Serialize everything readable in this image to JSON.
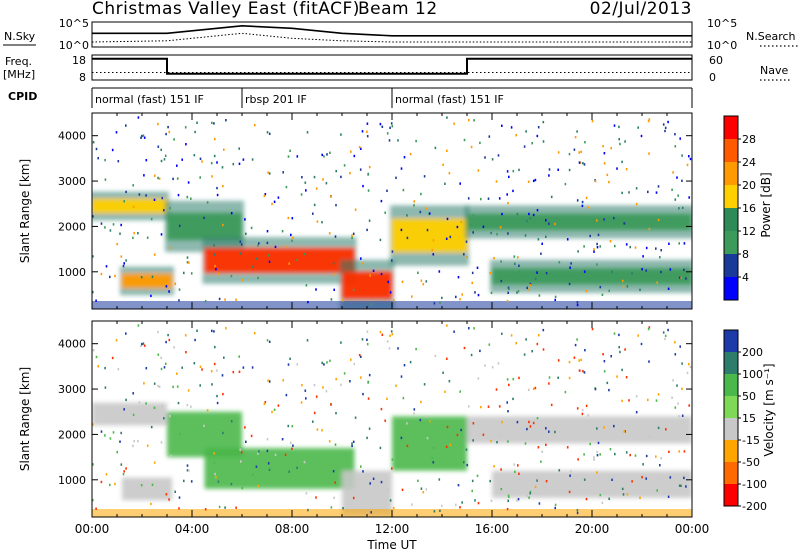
{
  "header": {
    "title": "Christmas Valley East (fitACF)",
    "beam": "Beam 12",
    "date": "02/Jul/2013"
  },
  "strip_sky": {
    "left_label": "N.Sky",
    "right_label": "N.Search",
    "left_ticks": [
      "10^5",
      "10^0"
    ],
    "right_ticks": [
      "10^5",
      "10^0"
    ]
  },
  "strip_freq": {
    "left_label_1": "Freq.",
    "left_label_2": "[MHz]",
    "right_label": "Nave",
    "left_ticks": [
      "18",
      "8"
    ],
    "right_ticks": [
      "60",
      "0"
    ]
  },
  "cpid": {
    "label": "CPID",
    "segments": [
      {
        "name": "normal (fast) 151 IF",
        "start_h": 0,
        "end_h": 6
      },
      {
        "name": "rbsp 201 IF",
        "start_h": 6,
        "end_h": 12
      },
      {
        "name": "normal (fast) 151 IF",
        "start_h": 12,
        "end_h": 24
      }
    ]
  },
  "panels": {
    "y_label": "Slant Range [km]",
    "y_ticks": [
      "4000",
      "3000",
      "2000",
      "1000"
    ],
    "x_ticks": [
      "00:00",
      "04:00",
      "08:00",
      "12:00",
      "16:00",
      "20:00",
      "00:00"
    ],
    "x_label": "Time UT"
  },
  "colorbars": {
    "power": {
      "label": "Power [dB]",
      "ticks": [
        "28",
        "24",
        "20",
        "16",
        "12",
        "8",
        "4"
      ],
      "colors": [
        "#ff0000",
        "#ff5a00",
        "#ff9a00",
        "#ffd000",
        "#2e8b57",
        "#3c9a5a",
        "#1a3a9a",
        "#0000ff"
      ]
    },
    "velocity": {
      "label": "Velocity [m s⁻¹]",
      "ticks": [
        "200",
        "100",
        "50",
        "15",
        "-15",
        "-50",
        "-100",
        "-200"
      ],
      "colors": [
        "#1c3aa8",
        "#2e7d6b",
        "#4ab84a",
        "#7ed957",
        "#c8c8c8",
        "#ffa500",
        "#ff6a00",
        "#ff0000"
      ]
    }
  },
  "chart_data": {
    "type": "heatmap",
    "title": "Christmas Valley East (fitACF)",
    "xlabel": "Time UT",
    "ylabel": "Slant Range [km]",
    "xlim_hours": [
      0,
      24
    ],
    "ylim_km": [
      180,
      4500
    ],
    "power_band_db": [
      4,
      28
    ],
    "velocity_range": [
      -200,
      200
    ],
    "echo_regions": [
      {
        "t0": 0.0,
        "t1": 3.0,
        "r0": 2200,
        "r1": 2700,
        "power_db": 16,
        "vel": 0
      },
      {
        "t0": 1.2,
        "t1": 3.2,
        "r0": 550,
        "r1": 1050,
        "power_db": 22,
        "vel": 0
      },
      {
        "t0": 3.0,
        "t1": 6.0,
        "r0": 1500,
        "r1": 2500,
        "power_db": 14,
        "vel": 40
      },
      {
        "t0": 4.5,
        "t1": 10.5,
        "r0": 800,
        "r1": 1700,
        "power_db": 24,
        "vel": 40
      },
      {
        "t0": 10.0,
        "t1": 12.0,
        "r0": 200,
        "r1": 1200,
        "power_db": 26,
        "vel": 0
      },
      {
        "t0": 12.0,
        "t1": 15.0,
        "r0": 1200,
        "r1": 2400,
        "power_db": 18,
        "vel": 20
      },
      {
        "t0": 15.0,
        "t1": 24.0,
        "r0": 1800,
        "r1": 2400,
        "power_db": 14,
        "vel": 0
      },
      {
        "t0": 16.0,
        "t1": 24.0,
        "r0": 600,
        "r1": 1200,
        "power_db": 12,
        "vel": 0
      }
    ],
    "nsky": [
      {
        "t": 0,
        "v": 0.55
      },
      {
        "t": 3,
        "v": 0.55
      },
      {
        "t": 5,
        "v": 0.75
      },
      {
        "t": 6,
        "v": 0.85
      },
      {
        "t": 8,
        "v": 0.75
      },
      {
        "t": 10,
        "v": 0.55
      },
      {
        "t": 12,
        "v": 0.45
      },
      {
        "t": 16,
        "v": 0.45
      },
      {
        "t": 20,
        "v": 0.45
      },
      {
        "t": 24,
        "v": 0.45
      }
    ],
    "nsearch": [
      {
        "t": 0,
        "v": 0.2
      },
      {
        "t": 3,
        "v": 0.25
      },
      {
        "t": 6,
        "v": 0.55
      },
      {
        "t": 8,
        "v": 0.35
      },
      {
        "t": 10,
        "v": 0.25
      },
      {
        "t": 12,
        "v": 0.2
      },
      {
        "t": 24,
        "v": 0.2
      }
    ],
    "freq_mhz": [
      {
        "t": 0,
        "v": 16.5
      },
      {
        "t": 3.0,
        "v": 16.5
      },
      {
        "t": 3.0,
        "v": 10.5
      },
      {
        "t": 15.0,
        "v": 10.5
      },
      {
        "t": 15.0,
        "v": 16.5
      },
      {
        "t": 24,
        "v": 16.5
      }
    ],
    "nave": 18
  }
}
